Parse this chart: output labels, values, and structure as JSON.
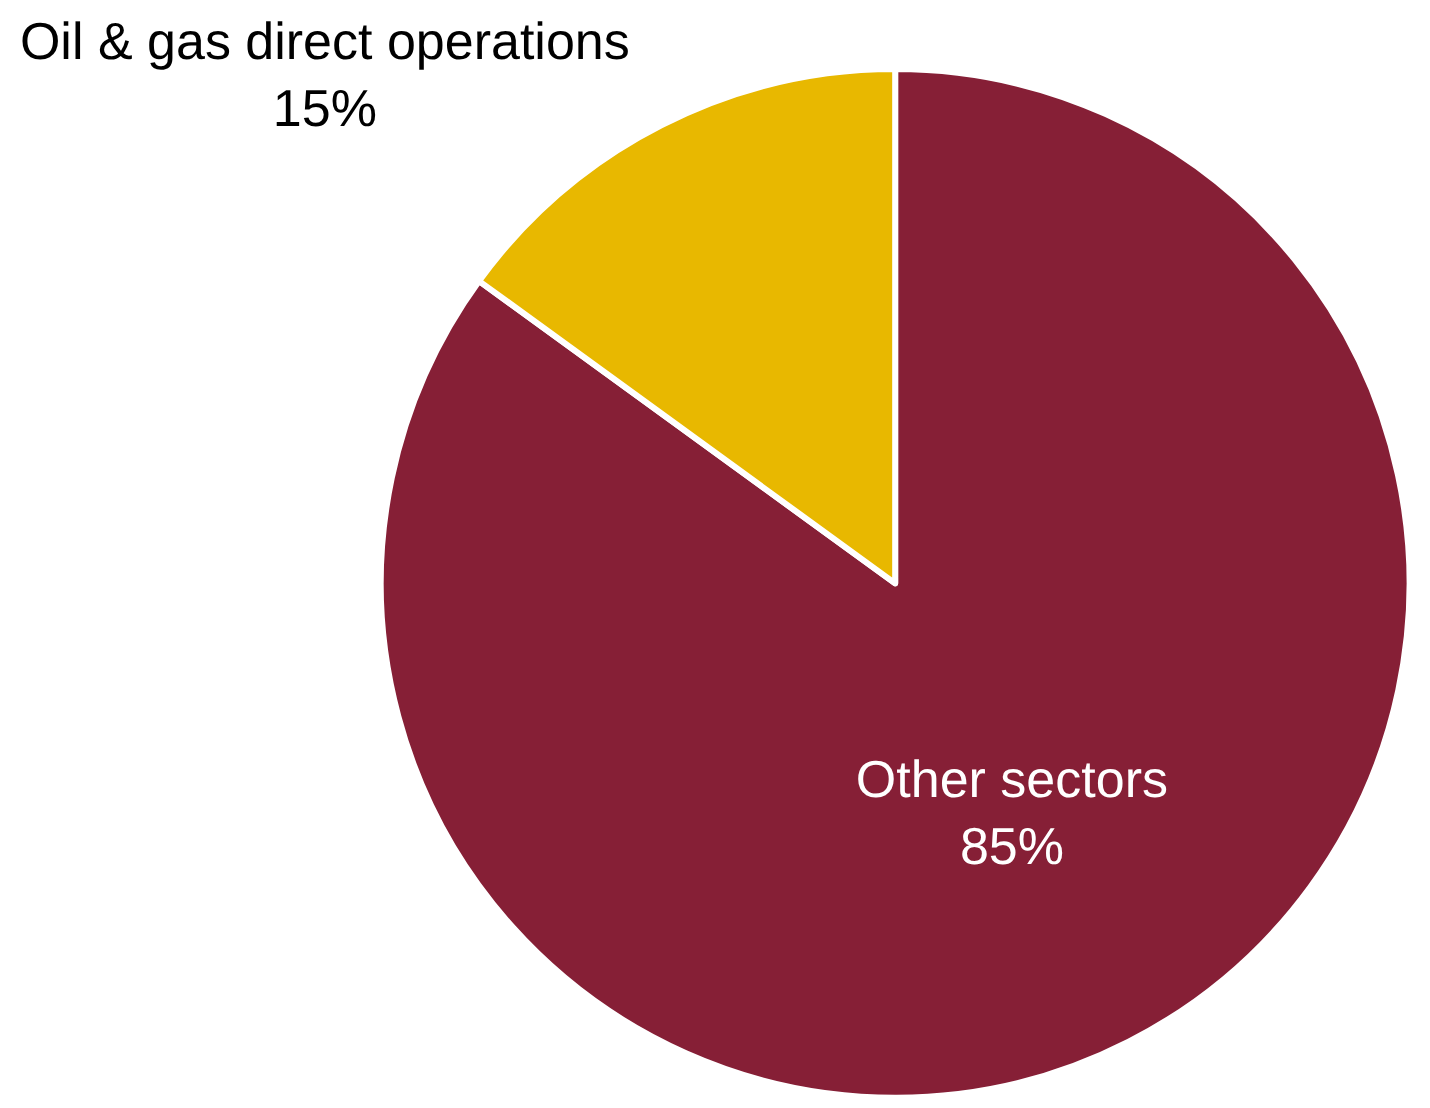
{
  "chart_data": {
    "type": "pie",
    "categories": [
      "Other sectors",
      "Oil & gas direct operations"
    ],
    "values": [
      85,
      15
    ],
    "value_labels": [
      "85%",
      "15%"
    ],
    "colors": [
      "#861f36",
      "#e8b800"
    ],
    "legend": false
  }
}
